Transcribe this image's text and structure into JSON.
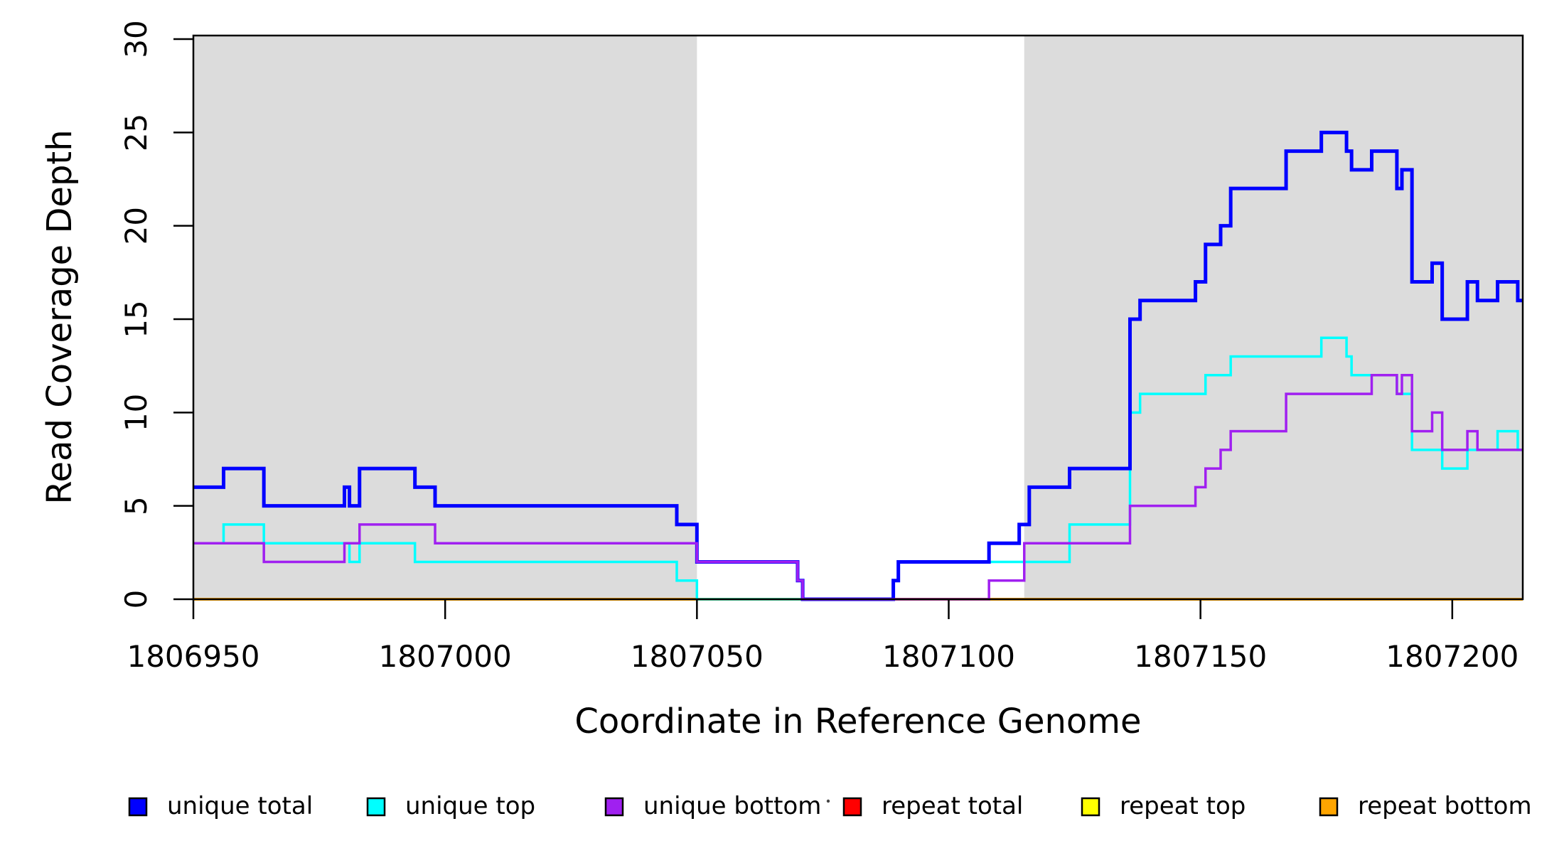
{
  "chart_data": {
    "type": "line",
    "subtype": "step",
    "title": "",
    "xlabel": "Coordinate in Reference Genome",
    "ylabel": "Read Coverage Depth",
    "xlim": [
      1806950,
      1807214
    ],
    "ylim": [
      0,
      30
    ],
    "x_ticks": [
      1806950,
      1807000,
      1807050,
      1807100,
      1807150,
      1807200
    ],
    "y_ticks": [
      0,
      5,
      10,
      15,
      20,
      25,
      30
    ],
    "grid": false,
    "background_color": "#ffffff",
    "band_color": "#dcdcdc",
    "axis_color": "#000000",
    "shaded_regions": [
      {
        "name": "left-gray-band",
        "from": 1806950,
        "to": 1807050
      },
      {
        "name": "right-gray-band",
        "from": 1807115,
        "to": 1807214
      }
    ],
    "series": [
      {
        "name": "repeat total",
        "color": "#ff0000",
        "line_width": 3,
        "points": [
          [
            1806950,
            0
          ]
        ]
      },
      {
        "name": "repeat top",
        "color": "#ffff00",
        "line_width": 3,
        "points": [
          [
            1806950,
            0
          ]
        ]
      },
      {
        "name": "repeat bottom",
        "color": "#ffa500",
        "line_width": 4,
        "points": [
          [
            1806950,
            0
          ]
        ]
      },
      {
        "name": "unique top",
        "color": "#00ffff",
        "line_width": 3.5,
        "points": [
          [
            1806950,
            3
          ],
          [
            1806956,
            4
          ],
          [
            1806964,
            3
          ],
          [
            1806981,
            2
          ],
          [
            1806983,
            3
          ],
          [
            1806994,
            2
          ],
          [
            1807046,
            1
          ],
          [
            1807050,
            0
          ],
          [
            1807089,
            1
          ],
          [
            1807090,
            2
          ],
          [
            1807124,
            4
          ],
          [
            1807136,
            10
          ],
          [
            1807138,
            11
          ],
          [
            1807151,
            12
          ],
          [
            1807156,
            13
          ],
          [
            1807174,
            14
          ],
          [
            1807179,
            13
          ],
          [
            1807180,
            12
          ],
          [
            1807189,
            11
          ],
          [
            1807192,
            8
          ],
          [
            1807198,
            7
          ],
          [
            1807203,
            8
          ],
          [
            1807209,
            9
          ],
          [
            1807213,
            8
          ]
        ]
      },
      {
        "name": "unique total",
        "color": "#0000ff",
        "line_width": 5,
        "points": [
          [
            1806950,
            6
          ],
          [
            1806956,
            7
          ],
          [
            1806964,
            5
          ],
          [
            1806980,
            6
          ],
          [
            1806981,
            5
          ],
          [
            1806983,
            7
          ],
          [
            1806994,
            6
          ],
          [
            1806998,
            5
          ],
          [
            1807046,
            4
          ],
          [
            1807050,
            2
          ],
          [
            1807070,
            1
          ],
          [
            1807071,
            0
          ],
          [
            1807089,
            1
          ],
          [
            1807090,
            2
          ],
          [
            1807108,
            3
          ],
          [
            1807114,
            4
          ],
          [
            1807116,
            6
          ],
          [
            1807124,
            7
          ],
          [
            1807136,
            15
          ],
          [
            1807138,
            16
          ],
          [
            1807149,
            17
          ],
          [
            1807151,
            19
          ],
          [
            1807154,
            20
          ],
          [
            1807156,
            22
          ],
          [
            1807167,
            24
          ],
          [
            1807174,
            25
          ],
          [
            1807179,
            24
          ],
          [
            1807180,
            23
          ],
          [
            1807184,
            24
          ],
          [
            1807189,
            22
          ],
          [
            1807190,
            23
          ],
          [
            1807192,
            17
          ],
          [
            1807196,
            18
          ],
          [
            1807198,
            15
          ],
          [
            1807203,
            17
          ],
          [
            1807205,
            16
          ],
          [
            1807209,
            17
          ],
          [
            1807213,
            16
          ]
        ]
      },
      {
        "name": "unique bottom",
        "color": "#a020f0",
        "line_width": 3.5,
        "points": [
          [
            1806950,
            3
          ],
          [
            1806964,
            2
          ],
          [
            1806980,
            3
          ],
          [
            1806983,
            4
          ],
          [
            1806998,
            3
          ],
          [
            1807050,
            2
          ],
          [
            1807070,
            1
          ],
          [
            1807071,
            0
          ],
          [
            1807108,
            1
          ],
          [
            1807115,
            3
          ],
          [
            1807136,
            5
          ],
          [
            1807149,
            6
          ],
          [
            1807151,
            7
          ],
          [
            1807154,
            8
          ],
          [
            1807156,
            9
          ],
          [
            1807167,
            11
          ],
          [
            1807184,
            12
          ],
          [
            1807189,
            11
          ],
          [
            1807190,
            12
          ],
          [
            1807192,
            9
          ],
          [
            1807196,
            10
          ],
          [
            1807198,
            8
          ],
          [
            1807203,
            9
          ],
          [
            1807205,
            8
          ]
        ]
      }
    ],
    "legend": {
      "position": "bottom",
      "entries": [
        {
          "label": "unique total",
          "color": "#0000ff"
        },
        {
          "label": "unique top",
          "color": "#00ffff"
        },
        {
          "label": "unique bottom",
          "color": "#a020f0"
        },
        {
          "label": "repeat total",
          "color": "#ff0000"
        },
        {
          "label": "repeat top",
          "color": "#ffff00"
        },
        {
          "label": "repeat bottom",
          "color": "#ffa500"
        }
      ],
      "stray_mark": "·"
    }
  }
}
